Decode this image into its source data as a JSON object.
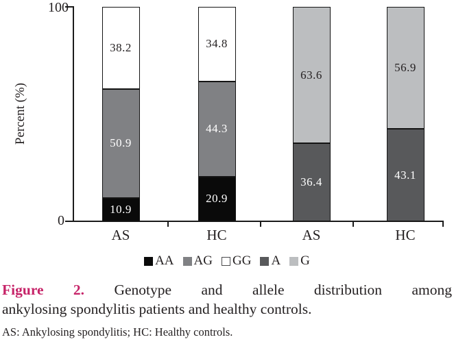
{
  "figure": {
    "caption_label": "Figure 2.",
    "caption_line1": "Genotype and allele distribution among",
    "caption_line2": "ankylosing spondylitis patients and healthy controls.",
    "footnote": "AS: Ankylosing spondylitis; HC: Healthy controls.",
    "accent_color": "#c62368",
    "text_color": "#231f20"
  },
  "chart_data": {
    "type": "bar",
    "stacked": true,
    "title": "",
    "xlabel": "",
    "ylabel": "Percent (%)",
    "ylim": [
      0,
      100
    ],
    "y_tick_labels": [
      "100",
      "0"
    ],
    "grid": false,
    "legend_position": "bottom",
    "axis_color": "#1a1a1a",
    "categories": [
      "AS",
      "HC",
      "AS",
      "HC"
    ],
    "series": [
      {
        "name": "AA",
        "color": "#0a0a0a",
        "label_color": "#ffffff",
        "values": [
          10.9,
          20.9,
          null,
          null
        ]
      },
      {
        "name": "AG",
        "color": "#808184",
        "label_color": "#ffffff",
        "values": [
          50.9,
          44.3,
          null,
          null
        ]
      },
      {
        "name": "GG",
        "color": "#ffffff",
        "label_color": "#231f20",
        "values": [
          38.2,
          34.8,
          null,
          null
        ]
      },
      {
        "name": "A",
        "color": "#58595b",
        "label_color": "#ffffff",
        "values": [
          null,
          null,
          36.4,
          43.1
        ]
      },
      {
        "name": "G",
        "color": "#bcbec0",
        "label_color": "#231f20",
        "values": [
          null,
          null,
          63.6,
          56.9
        ]
      }
    ]
  }
}
